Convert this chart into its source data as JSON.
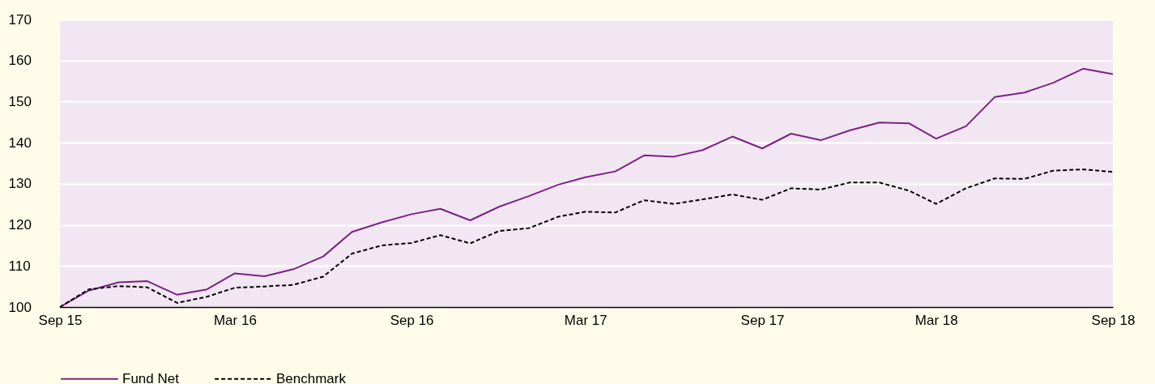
{
  "chart_data": {
    "type": "line",
    "x": [
      "2015-09",
      "2015-10",
      "2015-11",
      "2015-12",
      "2016-01",
      "2016-02",
      "2016-03",
      "2016-04",
      "2016-05",
      "2016-06",
      "2016-07",
      "2016-08",
      "2016-09",
      "2016-10",
      "2016-11",
      "2016-12",
      "2017-01",
      "2017-02",
      "2017-03",
      "2017-04",
      "2017-05",
      "2017-06",
      "2017-07",
      "2017-08",
      "2017-09",
      "2017-10",
      "2017-11",
      "2017-12",
      "2018-01",
      "2018-02",
      "2018-03",
      "2018-04",
      "2018-05",
      "2018-06",
      "2018-07",
      "2018-08",
      "2018-09"
    ],
    "series": [
      {
        "name": "Fund Net",
        "color": "#7b2383",
        "line_style": "solid",
        "values": [
          100,
          104,
          106,
          106.3,
          103,
          104.3,
          108.2,
          107.5,
          109.2,
          112.3,
          118.3,
          120.6,
          122.6,
          123.9,
          121.1,
          124.4,
          127,
          129.8,
          131.6,
          133,
          136.9,
          136.6,
          138.2,
          141.5,
          138.6,
          142.2,
          140.6,
          143,
          144.9,
          144.7,
          141,
          144,
          151.1,
          152.2,
          154.6,
          158,
          156.7
        ]
      },
      {
        "name": "Benchmark",
        "color": "#000000",
        "line_style": "dashed",
        "values": [
          100,
          104.3,
          105.1,
          104.8,
          101,
          102.5,
          104.7,
          105,
          105.4,
          107.4,
          113,
          115,
          115.6,
          117.5,
          115.5,
          118.5,
          119.2,
          122,
          123.2,
          123,
          126,
          125.1,
          126.2,
          127.4,
          126.1,
          128.9,
          128.6,
          130.3,
          130.3,
          128.3,
          125.1,
          128.9,
          131.3,
          131.2,
          133.2,
          133.5,
          132.9
        ]
      }
    ],
    "xlim": [
      "2015-09",
      "2018-09"
    ],
    "xticks": [
      {
        "value": "2015-09",
        "label": "Sep 15"
      },
      {
        "value": "2016-03",
        "label": "Mar 16"
      },
      {
        "value": "2016-09",
        "label": "Sep 16"
      },
      {
        "value": "2017-03",
        "label": "Mar 17"
      },
      {
        "value": "2017-09",
        "label": "Sep 17"
      },
      {
        "value": "2018-03",
        "label": "Mar 18"
      },
      {
        "value": "2018-09",
        "label": "Sep 18"
      }
    ],
    "ylim": [
      100,
      170
    ],
    "yticks": [
      100,
      110,
      120,
      130,
      140,
      150,
      160,
      170
    ],
    "grid": "y",
    "legend": "bottom left",
    "marker": "none"
  }
}
